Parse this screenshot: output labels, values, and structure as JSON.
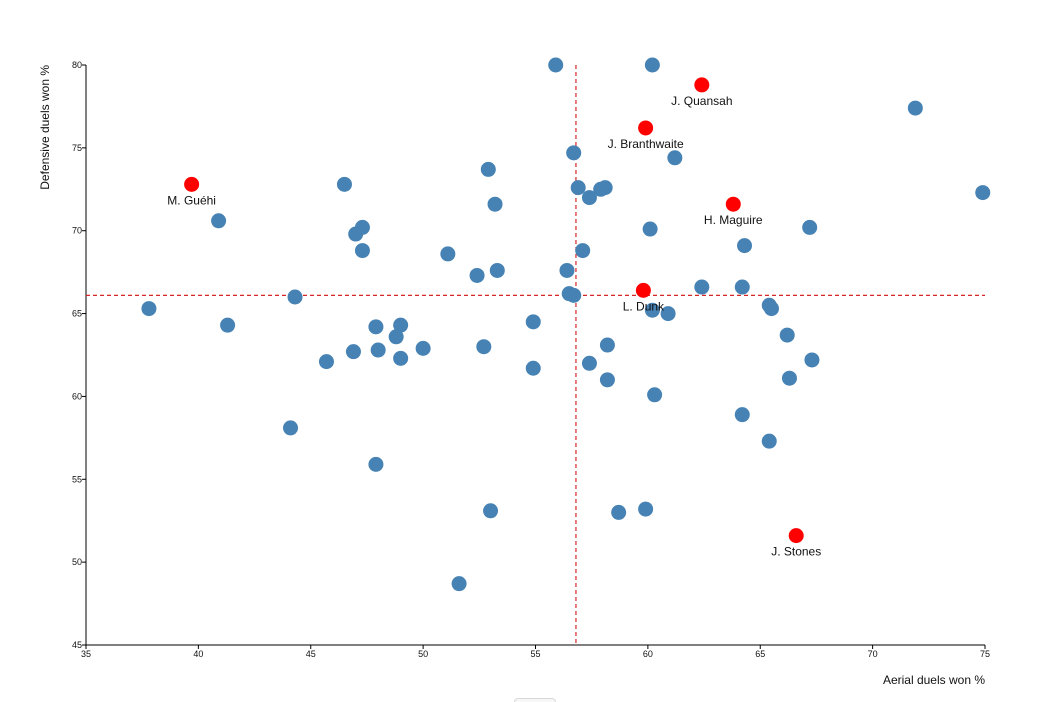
{
  "chart_data": {
    "type": "scatter",
    "title": "",
    "xlabel": "Aerial duels won %",
    "ylabel": "Defensive duels won %",
    "xlim": [
      35,
      75
    ],
    "ylim": [
      45,
      80
    ],
    "xticks": [
      "35",
      "40",
      "45",
      "50",
      "55",
      "60",
      "65",
      "70",
      "75"
    ],
    "yticks": [
      "45",
      "50",
      "55",
      "60",
      "65",
      "70",
      "75",
      "80"
    ],
    "grid": false,
    "reference_lines": {
      "x": 56.8,
      "y": 66.1
    },
    "colors": {
      "default": "#4682b4",
      "highlight": "#ff0000",
      "reference": "#d62728"
    },
    "series": [
      {
        "points": [
          [
            37.8,
            65.3
          ],
          [
            40.9,
            70.6
          ],
          [
            41.3,
            64.3
          ],
          [
            44.1,
            58.1
          ],
          [
            44.3,
            66.0
          ],
          [
            45.7,
            62.1
          ],
          [
            46.5,
            72.8
          ],
          [
            46.9,
            62.7
          ],
          [
            47.0,
            69.8
          ],
          [
            47.3,
            68.8
          ],
          [
            47.3,
            70.2
          ],
          [
            47.9,
            64.2
          ],
          [
            47.9,
            55.9
          ],
          [
            48.0,
            62.8
          ],
          [
            48.8,
            63.6
          ],
          [
            49.0,
            64.3
          ],
          [
            49.0,
            62.3
          ],
          [
            50.0,
            62.9
          ],
          [
            51.1,
            68.6
          ],
          [
            51.6,
            48.7
          ],
          [
            52.4,
            67.3
          ],
          [
            52.7,
            63.0
          ],
          [
            52.9,
            73.7
          ],
          [
            53.0,
            53.1
          ],
          [
            53.2,
            71.6
          ],
          [
            53.3,
            67.6
          ],
          [
            54.9,
            64.5
          ],
          [
            54.9,
            61.7
          ],
          [
            55.9,
            80.0
          ],
          [
            56.4,
            67.6
          ],
          [
            56.5,
            66.2
          ],
          [
            56.7,
            66.1
          ],
          [
            56.7,
            74.7
          ],
          [
            56.9,
            72.6
          ],
          [
            57.1,
            68.8
          ],
          [
            57.4,
            72.0
          ],
          [
            57.4,
            62.0
          ],
          [
            57.9,
            72.5
          ],
          [
            58.1,
            72.6
          ],
          [
            58.2,
            63.1
          ],
          [
            58.2,
            61.0
          ],
          [
            58.7,
            53.0
          ],
          [
            59.9,
            53.2
          ],
          [
            60.1,
            70.1
          ],
          [
            60.2,
            80.0
          ],
          [
            60.2,
            65.2
          ],
          [
            60.3,
            60.1
          ],
          [
            60.9,
            65.0
          ],
          [
            61.2,
            74.4
          ],
          [
            62.4,
            66.6
          ],
          [
            64.2,
            66.6
          ],
          [
            64.2,
            58.9
          ],
          [
            64.3,
            69.1
          ],
          [
            65.4,
            65.5
          ],
          [
            65.4,
            57.3
          ],
          [
            65.5,
            65.3
          ],
          [
            66.2,
            63.7
          ],
          [
            66.3,
            61.1
          ],
          [
            67.2,
            70.2
          ],
          [
            67.3,
            62.2
          ],
          [
            71.9,
            77.4
          ],
          [
            74.9,
            72.3
          ]
        ]
      },
      {
        "points": [
          {
            "x": 39.7,
            "y": 72.8,
            "label": "M. Guéhi"
          },
          {
            "x": 59.9,
            "y": 76.2,
            "label": "J. Branthwaite"
          },
          {
            "x": 62.4,
            "y": 78.8,
            "label": "J. Quansah"
          },
          {
            "x": 63.8,
            "y": 71.6,
            "label": "H. Maguire"
          },
          {
            "x": 59.8,
            "y": 66.4,
            "label": "L. Dunk"
          },
          {
            "x": 66.6,
            "y": 51.6,
            "label": "J. Stones"
          }
        ]
      }
    ]
  }
}
